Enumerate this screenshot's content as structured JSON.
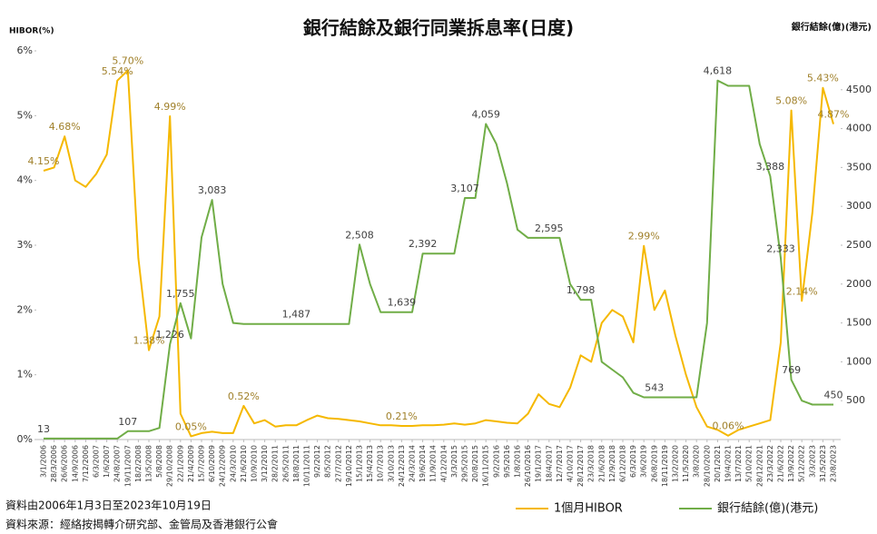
{
  "chart_data": {
    "type": "line",
    "title": "銀行結餘及銀行同業拆息率(日度)",
    "ylabel": "HIBOR(%)",
    "y2label": "銀行結餘(億)(港元)",
    "footnotes": [
      "資料由2006年1月3日至2023年10月19日",
      "資料來源：經絡按揭轉介研究部、金管局及香港銀行公會"
    ],
    "categories": [
      "3/1/2006",
      "28/3/2006",
      "26/6/2006",
      "14/9/2006",
      "7/12/2006",
      "6/3/2007",
      "1/6/2007",
      "24/8/2007",
      "19/11/2007",
      "18/2/2008",
      "13/5/2008",
      "5/8/2008",
      "29/10/2008",
      "22/1/2009",
      "21/4/2009",
      "15/7/2009",
      "6/10/2009",
      "24/12/2009",
      "24/3/2010",
      "21/6/2010",
      "10/9/2010",
      "3/12/2010",
      "28/2/2011",
      "26/5/2011",
      "18/8/2011",
      "10/11/2011",
      "9/2/2012",
      "8/5/2012",
      "27/7/2012",
      "19/10/2012",
      "15/1/2013",
      "15/4/2013",
      "10/7/2013",
      "3/10/2013",
      "24/12/2013",
      "24/3/2014",
      "19/6/2014",
      "11/9/2014",
      "4/12/2014",
      "3/3/2015",
      "29/5/2015",
      "20/8/2015",
      "16/11/2015",
      "9/2/2016",
      "9/5/2016",
      "1/8/2016",
      "26/10/2016",
      "19/1/2017",
      "18/4/2017",
      "12/7/2017",
      "4/10/2017",
      "28/12/2017",
      "23/3/2018",
      "21/6/2018",
      "12/9/2018",
      "6/12/2018",
      "6/3/2019",
      "3/6/2019",
      "26/8/2019",
      "18/11/2019",
      "13/2/2020",
      "11/5/2020",
      "3/8/2020",
      "28/10/2020",
      "20/1/2021",
      "19/4/2021",
      "13/7/2021",
      "5/10/2021",
      "28/12/2021",
      "23/3/2022",
      "21/6/2022",
      "13/9/2022",
      "5/12/2022",
      "3/3/2023",
      "31/5/2023",
      "23/8/2023"
    ],
    "series": [
      {
        "name": "1個月HIBOR",
        "color": "#f5b800",
        "label_color": "#a0802a",
        "values": [
          4.15,
          4.2,
          4.68,
          4.0,
          3.9,
          4.1,
          4.4,
          5.54,
          5.7,
          2.8,
          1.38,
          1.9,
          4.99,
          0.4,
          0.05,
          0.1,
          0.12,
          0.1,
          0.1,
          0.52,
          0.25,
          0.3,
          0.2,
          0.22,
          0.22,
          0.3,
          0.37,
          0.33,
          0.32,
          0.3,
          0.28,
          0.25,
          0.22,
          0.22,
          0.21,
          0.21,
          0.22,
          0.22,
          0.23,
          0.25,
          0.23,
          0.25,
          0.3,
          0.28,
          0.26,
          0.25,
          0.4,
          0.7,
          0.55,
          0.5,
          0.8,
          1.3,
          1.2,
          1.8,
          2.0,
          1.9,
          1.5,
          2.99,
          2.0,
          2.3,
          1.6,
          1.0,
          0.5,
          0.2,
          0.15,
          0.06,
          0.15,
          0.2,
          0.25,
          0.3,
          1.5,
          5.08,
          2.14,
          3.5,
          5.43,
          4.87
        ],
        "value_labels": [
          "4.15%",
          null,
          "4.68%",
          null,
          null,
          null,
          null,
          "5.54%",
          "5.70%",
          null,
          "1.38%",
          null,
          "4.99%",
          null,
          "0.05%",
          null,
          null,
          null,
          null,
          "0.52%",
          null,
          null,
          null,
          null,
          null,
          null,
          null,
          null,
          null,
          null,
          null,
          null,
          null,
          null,
          "0.21%",
          null,
          null,
          null,
          null,
          null,
          null,
          null,
          null,
          null,
          null,
          null,
          null,
          null,
          null,
          null,
          null,
          null,
          null,
          null,
          null,
          null,
          null,
          "2.99%",
          null,
          null,
          null,
          null,
          null,
          null,
          null,
          "0.06%",
          null,
          null,
          null,
          null,
          null,
          "5.08%",
          "2.14%",
          null,
          "5.43%",
          "4.87%"
        ]
      },
      {
        "name": "銀行結餘(億)(港元)",
        "color": "#70ad47",
        "label_color": "#404040",
        "axis": "y2",
        "values": [
          13,
          13,
          13,
          13,
          13,
          13,
          13,
          13,
          107,
          107,
          107,
          150,
          1226,
          1755,
          1300,
          2600,
          3083,
          2000,
          1500,
          1487,
          1487,
          1487,
          1487,
          1487,
          1487,
          1487,
          1487,
          1487,
          1487,
          1487,
          2508,
          2000,
          1639,
          1639,
          1639,
          1639,
          2392,
          2392,
          2392,
          2392,
          3107,
          3107,
          4059,
          3800,
          3300,
          2700,
          2595,
          2595,
          2595,
          2595,
          2000,
          1798,
          1798,
          1000,
          900,
          800,
          600,
          543,
          543,
          543,
          543,
          543,
          543,
          1500,
          4618,
          4550,
          4550,
          4550,
          3800,
          3388,
          2333,
          769,
          500,
          450,
          450,
          450
        ],
        "value_labels": [
          "13",
          null,
          null,
          null,
          null,
          null,
          null,
          null,
          "107",
          null,
          null,
          null,
          "1,226",
          "1,755",
          null,
          null,
          "3,083",
          null,
          null,
          null,
          null,
          null,
          null,
          null,
          "1,487",
          null,
          null,
          null,
          null,
          null,
          "2,508",
          null,
          null,
          null,
          "1,639",
          null,
          "2,392",
          null,
          null,
          null,
          "3,107",
          null,
          "4,059",
          null,
          null,
          null,
          null,
          null,
          "2,595",
          null,
          null,
          "1,798",
          null,
          null,
          null,
          null,
          null,
          null,
          "543",
          null,
          null,
          null,
          null,
          null,
          "4,618",
          null,
          null,
          null,
          null,
          "3,388",
          "2,333",
          "769",
          null,
          null,
          null,
          "450"
        ]
      }
    ],
    "ylim": [
      0,
      6
    ],
    "yticks": [
      {
        "value": 0,
        "label": "0%"
      },
      {
        "value": 1,
        "label": "1%"
      },
      {
        "value": 2,
        "label": "2%"
      },
      {
        "value": 3,
        "label": "3%"
      },
      {
        "value": 4,
        "label": "4%"
      },
      {
        "value": 5,
        "label": "5%"
      },
      {
        "value": 6,
        "label": "6%"
      }
    ],
    "y2lim": [
      0,
      5000
    ],
    "y2ticks": [
      500,
      1000,
      1500,
      2000,
      2500,
      3000,
      3500,
      4000,
      4500
    ],
    "grid": false,
    "legend": "bottom"
  }
}
